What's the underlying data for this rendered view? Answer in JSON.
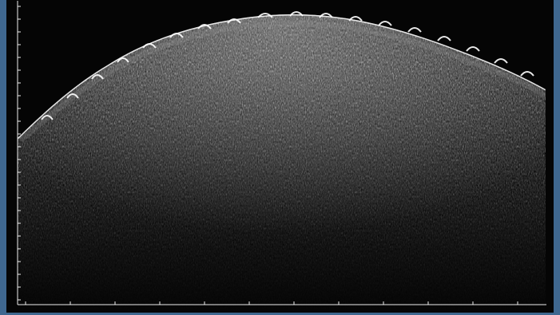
{
  "image": {
    "type": "oct-scan",
    "palette": {
      "background": "#050505",
      "window": "#3f678f",
      "tissue_bright": "#f2f2f2",
      "tissue_mid": "#7c7c7c",
      "axis": "#ededed"
    },
    "left_ticks": 24,
    "bottom_ticks": 12
  }
}
